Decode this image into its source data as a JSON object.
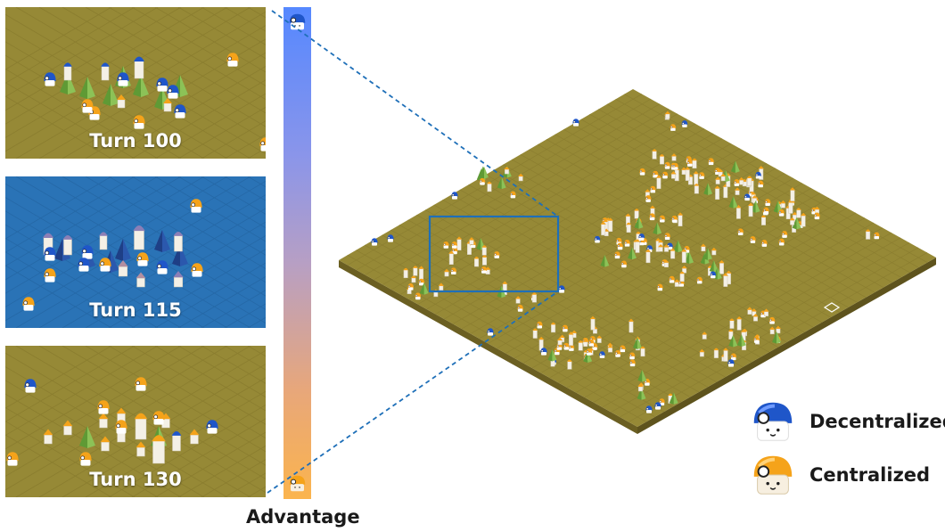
{
  "panels": [
    {
      "label": "Turn 100",
      "background": "#968936"
    },
    {
      "label": "Turn 115",
      "background": "#2a73b6"
    },
    {
      "label": "Turn 130",
      "background": "#968936"
    }
  ],
  "advantage_bar": {
    "label": "Advantage",
    "top_color": "#5588ff",
    "bottom_color": "#fbb44d",
    "top_icon": "decentralized-agent-icon",
    "bottom_icon": "centralized-agent-icon"
  },
  "legend": [
    {
      "label": "Decentralized",
      "icon": "blue-helmet-agent-icon",
      "color": "#1f56c9"
    },
    {
      "label": "Centralized",
      "icon": "orange-helmet-agent-icon",
      "color": "#f5a31a"
    }
  ],
  "map": {
    "ground_color": "#968936",
    "edge_color": "#6b5f22",
    "highlight_color": "#1e6fb8"
  }
}
